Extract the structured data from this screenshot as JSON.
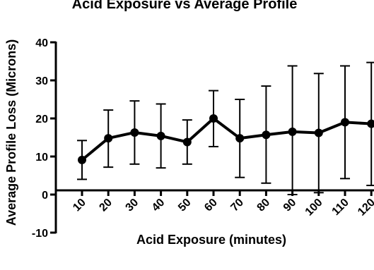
{
  "chart_data": {
    "type": "line",
    "title": "Acid Exposure vs Average Profile",
    "xlabel": "Acid Exposure (minutes)",
    "ylabel": "Average Profile Loss (Microns)",
    "categories": [
      "10",
      "20",
      "30",
      "40",
      "50",
      "60",
      "70",
      "80",
      "90",
      "100",
      "110",
      "120"
    ],
    "ylim": [
      -10,
      40
    ],
    "yticks": [
      -10,
      0,
      10,
      20,
      30,
      40
    ],
    "grid": false,
    "legend": "none",
    "series": [
      {
        "values": [
          9.1,
          14.8,
          16.3,
          15.4,
          13.8,
          20.0,
          14.8,
          15.7,
          16.5,
          16.2,
          19.0,
          18.6
        ],
        "error_low": [
          4.0,
          7.2,
          8.0,
          7.0,
          8.0,
          12.6,
          4.5,
          3.0,
          0.0,
          0.5,
          4.2,
          2.4
        ],
        "error_high": [
          14.2,
          22.2,
          24.6,
          23.8,
          19.6,
          27.3,
          25.0,
          28.5,
          33.8,
          31.8,
          33.8,
          34.7
        ]
      }
    ]
  }
}
